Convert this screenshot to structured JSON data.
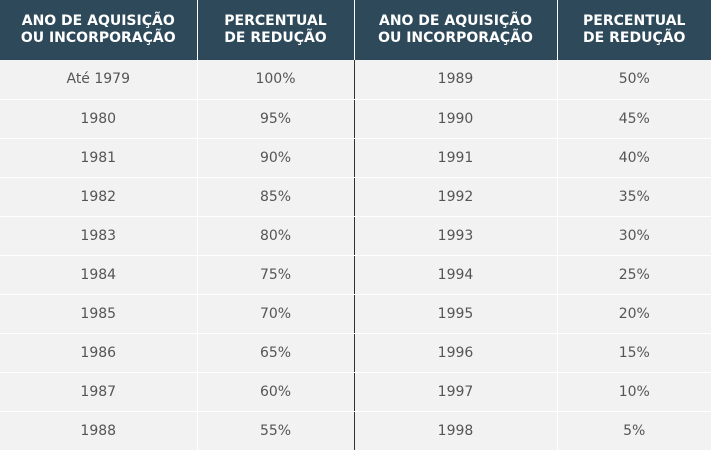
{
  "headers": [
    [
      "ANO DE AQUISIÇÃO",
      "OU INCORPORAÇÃO"
    ],
    [
      "PERCENTUAL",
      "DE REDUÇÃO"
    ],
    [
      "ANO DE AQUISIÇÃO",
      "OU INCORPORAÇÃO"
    ],
    [
      "PERCENTUAL",
      "DE REDUÇÃO"
    ]
  ],
  "rows": [
    [
      "Até 1979",
      "100%",
      "1989",
      "50%"
    ],
    [
      "1980",
      "95%",
      "1990",
      "45%"
    ],
    [
      "1981",
      "90%",
      "1991",
      "40%"
    ],
    [
      "1982",
      "85%",
      "1992",
      "35%"
    ],
    [
      "1983",
      "80%",
      "1993",
      "30%"
    ],
    [
      "1984",
      "75%",
      "1994",
      "25%"
    ],
    [
      "1985",
      "70%",
      "1995",
      "20%"
    ],
    [
      "1986",
      "65%",
      "1996",
      "15%"
    ],
    [
      "1987",
      "60%",
      "1997",
      "10%"
    ],
    [
      "1988",
      "55%",
      "1998",
      "5%"
    ]
  ],
  "colors": {
    "header_bg": "#2e4a5a",
    "header_text": "#ffffff",
    "cell_bg": "#f2f2f2",
    "cell_text": "#555555"
  }
}
